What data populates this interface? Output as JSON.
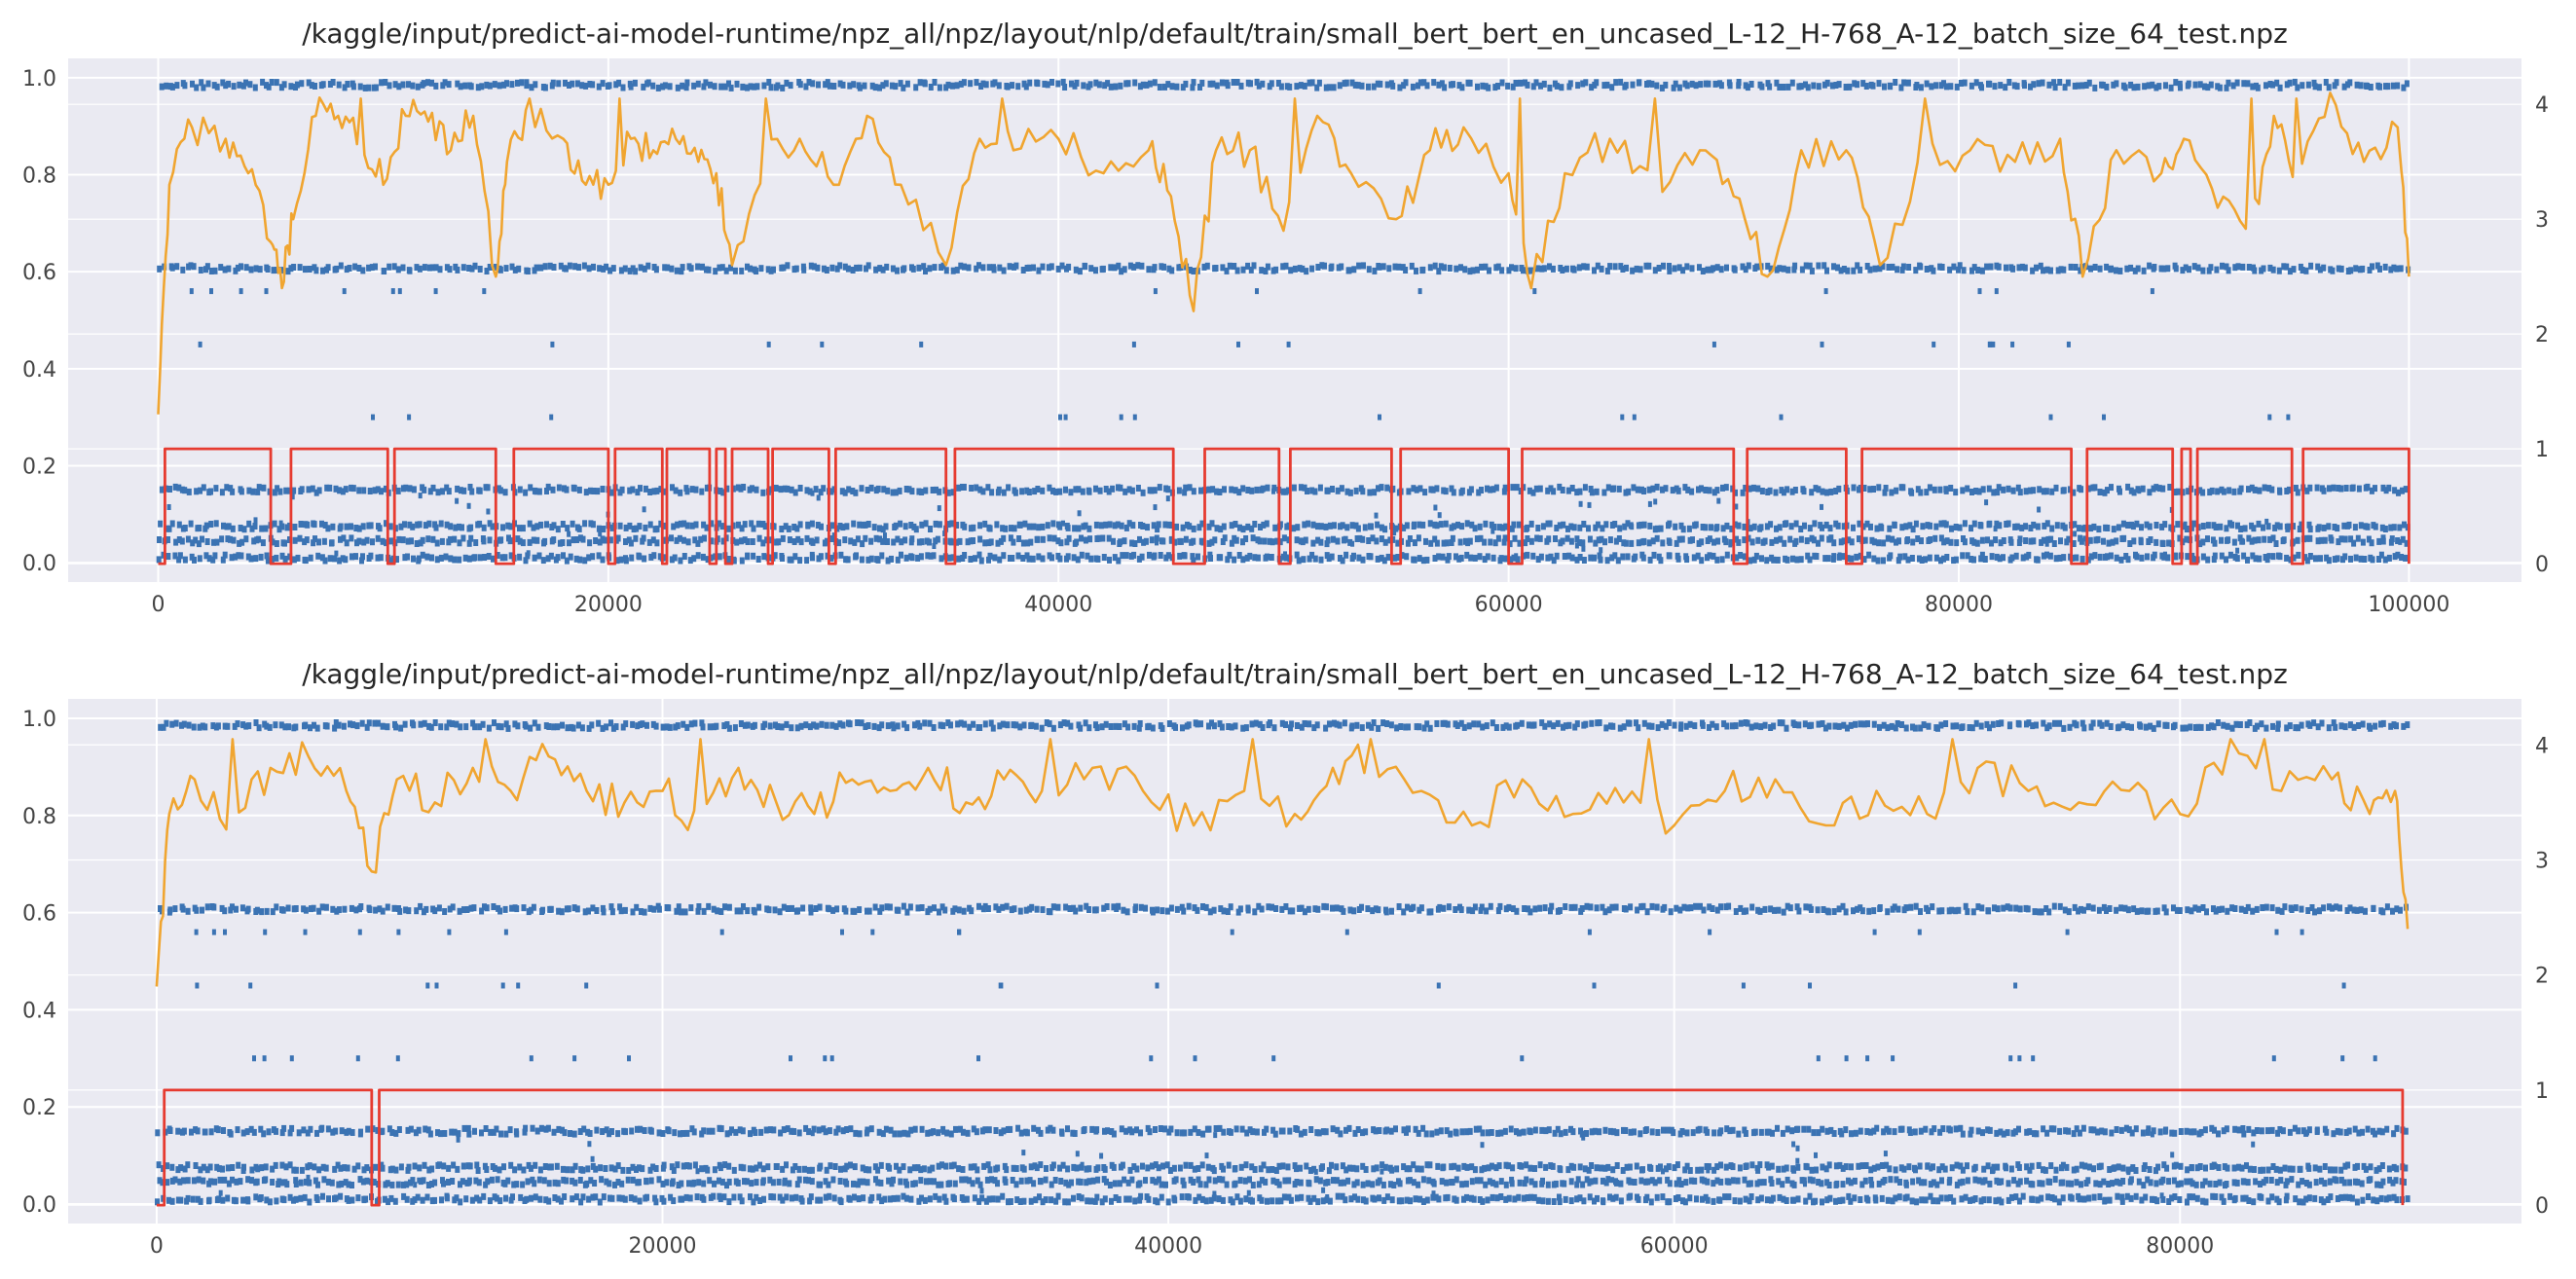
{
  "chart_data": [
    {
      "type": "scatter",
      "title": "/kaggle/input/predict-ai-model-runtime/npz_all/npz/layout/nlp/default/train/small_bert_bert_en_uncased_L-12_H-768_A-12_batch_size_64_test.npz",
      "xlim": [
        -4000,
        105000
      ],
      "ylim": [
        -0.04,
        1.04
      ],
      "y2lim": [
        -0.16,
        4.4
      ],
      "xticks": [
        0,
        20000,
        40000,
        60000,
        80000,
        100000
      ],
      "xtick_labels": [
        "0",
        "20000",
        "40000",
        "60000",
        "80000",
        "100000"
      ],
      "yticks": [
        0.0,
        0.2,
        0.4,
        0.6,
        0.8,
        1.0
      ],
      "ytick_labels": [
        "0.0",
        "0.2",
        "0.4",
        "0.6",
        "0.8",
        "1.0"
      ],
      "y2ticks": [
        0,
        1,
        2,
        3,
        4
      ],
      "y2tick_labels": [
        "0",
        "1",
        "2",
        "3",
        "4"
      ],
      "grid": true,
      "n_points": 100000,
      "points_series": {
        "color": "#3b73b3",
        "axis": "left",
        "bands": [
          0.985,
          0.607,
          0.15,
          0.075,
          0.045,
          0.01
        ],
        "sparse_values": [
          0.56,
          0.45,
          0.3
        ]
      },
      "line_series": {
        "color": "#f0a530",
        "axis": "right",
        "x": [
          0,
          500,
          1500,
          3000,
          4000,
          5000,
          5500,
          6000,
          7000,
          8000,
          9000,
          10000,
          11000,
          12000,
          13000,
          14000,
          15000,
          15500,
          16500,
          18000,
          19000,
          20000,
          21000,
          22000,
          23000,
          24000,
          24800,
          25500,
          27000,
          28500,
          30000,
          31500,
          33000,
          35000,
          36500,
          38000,
          40000,
          42000,
          44000,
          45000,
          46000,
          47000,
          48500,
          50000,
          51500,
          53000,
          55000,
          56500,
          58000,
          60000,
          61000,
          62500,
          64500,
          66500,
          68500,
          70000,
          71500,
          73000,
          75000,
          76500,
          78500,
          80500,
          82500,
          84500,
          85500,
          87000,
          89000,
          90000,
          91500,
          93000,
          94000,
          95000,
          96500,
          98000,
          99500,
          100000
        ],
        "y": [
          1.3,
          3.3,
          3.8,
          3.7,
          3.4,
          2.8,
          2.4,
          3.0,
          3.9,
          3.9,
          3.7,
          3.3,
          3.9,
          3.85,
          3.6,
          3.9,
          2.5,
          3.5,
          3.9,
          3.7,
          3.3,
          3.3,
          3.7,
          3.6,
          3.7,
          3.5,
          3.4,
          2.6,
          3.6,
          3.7,
          3.3,
          3.9,
          3.3,
          2.6,
          3.7,
          3.6,
          3.7,
          3.4,
          3.6,
          3.2,
          2.2,
          3.6,
          3.6,
          2.9,
          3.9,
          3.4,
          3.0,
          3.6,
          3.8,
          3.4,
          2.4,
          3.4,
          3.7,
          3.3,
          3.6,
          3.2,
          2.5,
          3.6,
          3.6,
          2.6,
          3.5,
          3.6,
          3.5,
          3.7,
          2.5,
          3.6,
          3.4,
          3.7,
          3.1,
          2.9,
          3.9,
          3.4,
          4.1,
          3.5,
          3.8,
          2.5
        ],
        "spikes": [
          9000,
          16500,
          20500,
          27000,
          37500,
          50500,
          60500,
          66500,
          78500,
          93000,
          95000
        ]
      },
      "step_series": {
        "color": "#e63b30",
        "axis": "right",
        "high": 1.0,
        "low": 0.0,
        "x": [
          0,
          300,
          300,
          5000,
          5000,
          5900,
          5900,
          10200,
          10200,
          10500,
          10500,
          15000,
          15000,
          15800,
          15800,
          20000,
          20000,
          20300,
          20300,
          22400,
          22400,
          22600,
          22600,
          24500,
          24500,
          24800,
          24800,
          25200,
          25200,
          25500,
          25500,
          27100,
          27100,
          27300,
          27300,
          29800,
          29800,
          30100,
          30100,
          35000,
          35000,
          35400,
          35400,
          45100,
          45100,
          46500,
          46500,
          49800,
          49800,
          50300,
          50300,
          54800,
          54800,
          55200,
          55200,
          60000,
          60000,
          60600,
          60600,
          70000,
          70000,
          70600,
          70600,
          75000,
          75000,
          75700,
          75700,
          85000,
          85000,
          85700,
          85700,
          89500,
          89500,
          89900,
          89900,
          90300,
          90300,
          90600,
          90600,
          94800,
          94800,
          95300,
          95300,
          100000,
          100000
        ],
        "y": [
          0,
          0,
          1,
          1,
          0,
          0,
          1,
          1,
          0,
          0,
          1,
          1,
          0,
          0,
          1,
          1,
          0,
          0,
          1,
          1,
          0,
          0,
          1,
          1,
          0,
          0,
          1,
          1,
          0,
          0,
          1,
          1,
          0,
          0,
          1,
          1,
          0,
          0,
          1,
          1,
          0,
          0,
          1,
          1,
          0,
          0,
          1,
          1,
          0,
          0,
          1,
          1,
          0,
          0,
          1,
          1,
          0,
          0,
          1,
          1,
          0,
          0,
          1,
          1,
          0,
          0,
          1,
          1,
          0,
          0,
          1,
          1,
          0,
          0,
          1,
          1,
          0,
          0,
          1,
          1,
          0,
          0,
          1,
          1,
          0
        ]
      }
    },
    {
      "type": "scatter",
      "title": "/kaggle/input/predict-ai-model-runtime/npz_all/npz/layout/nlp/default/train/small_bert_bert_en_uncased_L-12_H-768_A-12_batch_size_64_test.npz",
      "xlim": [
        -3500,
        93500
      ],
      "ylim": [
        -0.04,
        1.04
      ],
      "y2lim": [
        -0.16,
        4.4
      ],
      "xticks": [
        0,
        20000,
        40000,
        60000,
        80000
      ],
      "xtick_labels": [
        "0",
        "20000",
        "40000",
        "60000",
        "80000"
      ],
      "yticks": [
        0.0,
        0.2,
        0.4,
        0.6,
        0.8,
        1.0
      ],
      "ytick_labels": [
        "0.0",
        "0.2",
        "0.4",
        "0.6",
        "0.8",
        "1.0"
      ],
      "y2ticks": [
        0,
        1,
        2,
        3,
        4
      ],
      "y2tick_labels": [
        "0",
        "1",
        "2",
        "3",
        "4"
      ],
      "grid": true,
      "n_points": 89000,
      "points_series": {
        "color": "#3b73b3",
        "axis": "left",
        "bands": [
          0.985,
          0.607,
          0.15,
          0.075,
          0.045,
          0.01
        ],
        "sparse_values": [
          0.56,
          0.45,
          0.3
        ]
      },
      "line_series": {
        "color": "#f0a530",
        "axis": "right",
        "x": [
          0,
          500,
          1500,
          3000,
          4500,
          6000,
          7500,
          8500,
          9500,
          11000,
          12500,
          14000,
          15500,
          17000,
          18500,
          20000,
          21500,
          23000,
          24500,
          26000,
          27500,
          29000,
          30500,
          32000,
          33500,
          35000,
          37000,
          39000,
          41000,
          43000,
          45000,
          46500,
          48000,
          50000,
          52000,
          54000,
          56000,
          58000,
          60000,
          62000,
          64000,
          66000,
          68000,
          70000,
          72000,
          74000,
          76000,
          78000,
          80000,
          82000,
          84000,
          86000,
          87500,
          88500,
          89000
        ],
        "y": [
          1.9,
          3.4,
          3.7,
          3.3,
          3.8,
          3.9,
          3.6,
          2.9,
          3.7,
          3.5,
          3.8,
          3.6,
          3.9,
          3.6,
          3.5,
          3.6,
          3.3,
          3.8,
          3.5,
          3.4,
          3.7,
          3.6,
          3.8,
          3.5,
          3.7,
          3.6,
          3.8,
          3.6,
          3.3,
          3.6,
          3.4,
          3.8,
          3.9,
          3.6,
          3.3,
          3.7,
          3.4,
          3.5,
          3.3,
          3.6,
          3.7,
          3.3,
          3.6,
          3.4,
          3.8,
          3.6,
          3.5,
          3.6,
          3.4,
          3.9,
          3.6,
          3.7,
          3.4,
          3.6,
          2.4
        ],
        "spikes": [
          3000,
          13000,
          21500,
          35500,
          43500,
          48000,
          59000,
          71000,
          82000,
          83500
        ]
      },
      "step_series": {
        "color": "#e63b30",
        "axis": "right",
        "high": 1.0,
        "low": 0.0,
        "x": [
          0,
          300,
          300,
          8500,
          8500,
          8800,
          8800,
          88800,
          88800
        ],
        "y": [
          0,
          0,
          1,
          1,
          0,
          0,
          1,
          1,
          0
        ]
      }
    }
  ]
}
